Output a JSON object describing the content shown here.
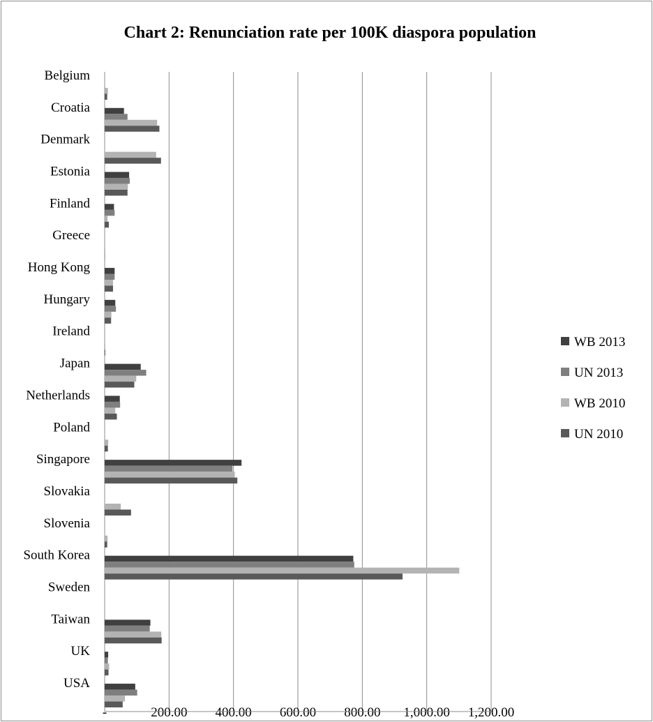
{
  "chart_data": {
    "type": "bar",
    "orientation": "horizontal",
    "title": "Chart 2: Renunciation rate per 100K diaspora population",
    "categories": [
      "Belgium",
      "Croatia",
      "Denmark",
      "Estonia",
      "Finland",
      "Greece",
      "Hong Kong",
      "Hungary",
      "Ireland",
      "Japan",
      "Netherlands",
      "Poland",
      "Singapore",
      "Slovakia",
      "Slovenia",
      "South Korea",
      "Sweden",
      "Taiwan",
      "UK",
      "USA"
    ],
    "series": [
      {
        "name": "WB 2013",
        "color": "#404040",
        "values": [
          0,
          60,
          0,
          76,
          29,
          0,
          31,
          33,
          0,
          112,
          47,
          0,
          425,
          0,
          0,
          772,
          0,
          142,
          11,
          95
        ]
      },
      {
        "name": "UN 2013",
        "color": "#7f7f7f",
        "values": [
          0,
          71,
          0,
          78,
          31,
          0,
          31,
          35,
          0,
          129,
          48,
          0,
          397,
          0,
          0,
          775,
          0,
          140,
          10,
          101
        ]
      },
      {
        "name": "WB 2010",
        "color": "#b3b3b3",
        "values": [
          10,
          163,
          160,
          72,
          9,
          2,
          26,
          21,
          2,
          98,
          33,
          11,
          404,
          50,
          9,
          1101,
          0,
          176,
          14,
          63
        ]
      },
      {
        "name": "UN 2010",
        "color": "#595959",
        "values": [
          8,
          170,
          175,
          71,
          13,
          1,
          26,
          20,
          2,
          92,
          38,
          10,
          412,
          82,
          8,
          925,
          0,
          177,
          12,
          56
        ]
      }
    ],
    "x_ticks": [
      "-",
      "200.00",
      "400.00",
      "600.00",
      "800.00",
      "1,000.00",
      "1,200.00"
    ],
    "xlim": [
      0,
      1200
    ],
    "grid": true,
    "legend_position": "right"
  }
}
